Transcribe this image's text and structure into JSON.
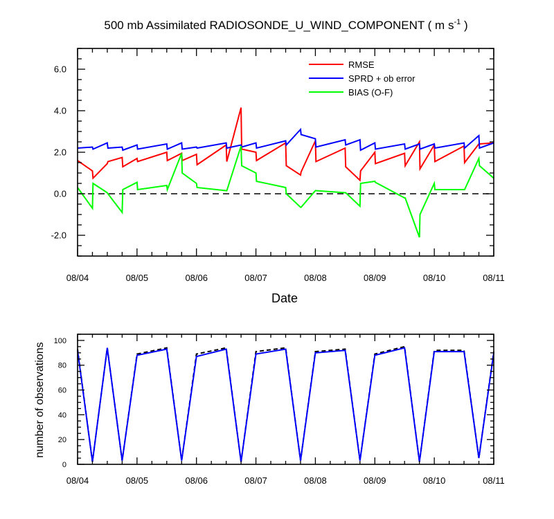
{
  "chart_data": [
    {
      "type": "line",
      "title": "500 mb Assimilated RADIOSONDE_U_WIND_COMPONENT ( m s",
      "title_superscript": "-1",
      "title_suffix": " )",
      "xlabel": "Date",
      "ylabel": "",
      "x_tick_labels": [
        "08/04",
        "08/05",
        "08/06",
        "08/07",
        "08/08",
        "08/09",
        "08/10",
        "08/11"
      ],
      "x_range": [
        0,
        7
      ],
      "ylim": [
        -3,
        7
      ],
      "y_ticks": [
        6.0,
        4.0,
        2.0,
        0.0,
        -2.0
      ],
      "y_tick_labels": [
        "6.0",
        "4.0",
        "2.0",
        "0.0",
        "-2.0"
      ],
      "zero_line": "dashed",
      "legend_position": "top-right",
      "series": [
        {
          "name": "RMSE",
          "color": "#ff0000",
          "points": [
            [
              0,
              1.6
            ],
            [
              0.25,
              1.1
            ],
            [
              0.26,
              0.75
            ],
            [
              0.5,
              1.45
            ],
            [
              0.51,
              1.55
            ],
            [
              0.75,
              1.75
            ],
            [
              0.76,
              1.3
            ],
            [
              1.0,
              1.7
            ],
            [
              1.01,
              1.55
            ],
            [
              1.5,
              2.0
            ],
            [
              1.51,
              1.6
            ],
            [
              1.75,
              1.95
            ],
            [
              1.76,
              1.6
            ],
            [
              2.0,
              1.9
            ],
            [
              2.01,
              1.4
            ],
            [
              2.5,
              2.35
            ],
            [
              2.51,
              1.55
            ],
            [
              2.75,
              4.15
            ],
            [
              2.76,
              2.15
            ],
            [
              3.0,
              2.0
            ],
            [
              3.01,
              1.6
            ],
            [
              3.5,
              2.45
            ],
            [
              3.51,
              1.35
            ],
            [
              3.75,
              0.9
            ],
            [
              3.76,
              1.05
            ],
            [
              4.0,
              2.55
            ],
            [
              4.01,
              1.55
            ],
            [
              4.5,
              2.2
            ],
            [
              4.51,
              1.3
            ],
            [
              4.75,
              0.65
            ],
            [
              4.76,
              1.1
            ],
            [
              5.0,
              2.0
            ],
            [
              5.01,
              1.45
            ],
            [
              5.5,
              1.95
            ],
            [
              5.51,
              1.35
            ],
            [
              5.75,
              2.5
            ],
            [
              5.76,
              1.2
            ],
            [
              6.0,
              2.35
            ],
            [
              6.01,
              1.55
            ],
            [
              6.5,
              2.3
            ],
            [
              6.51,
              1.5
            ],
            [
              6.75,
              2.4
            ],
            [
              6.76,
              2.4
            ],
            [
              7.0,
              2.45
            ]
          ]
        },
        {
          "name": "SPRD + ob error",
          "color": "#0000ff",
          "points": [
            [
              0,
              2.2
            ],
            [
              0.25,
              2.25
            ],
            [
              0.26,
              2.15
            ],
            [
              0.5,
              2.45
            ],
            [
              0.51,
              2.2
            ],
            [
              0.75,
              2.25
            ],
            [
              0.76,
              2.1
            ],
            [
              1.0,
              2.35
            ],
            [
              1.01,
              2.15
            ],
            [
              1.5,
              2.4
            ],
            [
              1.51,
              2.15
            ],
            [
              1.75,
              2.45
            ],
            [
              1.76,
              2.15
            ],
            [
              2.0,
              2.25
            ],
            [
              2.01,
              2.2
            ],
            [
              2.5,
              2.45
            ],
            [
              2.51,
              2.2
            ],
            [
              2.75,
              2.35
            ],
            [
              2.76,
              2.25
            ],
            [
              3.0,
              2.45
            ],
            [
              3.01,
              2.2
            ],
            [
              3.5,
              2.55
            ],
            [
              3.51,
              2.35
            ],
            [
              3.75,
              3.1
            ],
            [
              3.76,
              2.85
            ],
            [
              4.0,
              2.65
            ],
            [
              4.01,
              2.25
            ],
            [
              4.5,
              2.6
            ],
            [
              4.51,
              2.35
            ],
            [
              4.75,
              2.6
            ],
            [
              4.76,
              2.1
            ],
            [
              5.0,
              2.45
            ],
            [
              5.01,
              2.15
            ],
            [
              5.5,
              2.4
            ],
            [
              5.51,
              2.15
            ],
            [
              5.75,
              2.4
            ],
            [
              5.76,
              2.15
            ],
            [
              6.0,
              2.4
            ],
            [
              6.01,
              2.2
            ],
            [
              6.5,
              2.45
            ],
            [
              6.51,
              2.2
            ],
            [
              6.75,
              2.8
            ],
            [
              6.76,
              2.2
            ],
            [
              7.0,
              2.45
            ]
          ]
        },
        {
          "name": "BIAS (O-F)",
          "color": "#00ff00",
          "points": [
            [
              0,
              0.3
            ],
            [
              0.25,
              -0.7
            ],
            [
              0.26,
              0.5
            ],
            [
              0.5,
              0.05
            ],
            [
              0.51,
              0.0
            ],
            [
              0.75,
              -0.9
            ],
            [
              0.76,
              0.2
            ],
            [
              1.0,
              0.55
            ],
            [
              1.01,
              0.2
            ],
            [
              1.5,
              0.4
            ],
            [
              1.51,
              0.2
            ],
            [
              1.75,
              1.95
            ],
            [
              1.76,
              1.0
            ],
            [
              2.0,
              0.5
            ],
            [
              2.01,
              0.3
            ],
            [
              2.5,
              0.15
            ],
            [
              2.51,
              0.15
            ],
            [
              2.75,
              2.3
            ],
            [
              2.76,
              1.35
            ],
            [
              3.0,
              1.0
            ],
            [
              3.01,
              0.6
            ],
            [
              3.5,
              0.3
            ],
            [
              3.51,
              0.0
            ],
            [
              3.75,
              -0.65
            ],
            [
              3.76,
              -0.65
            ],
            [
              4.0,
              0.15
            ],
            [
              4.01,
              0.15
            ],
            [
              4.5,
              0.05
            ],
            [
              4.51,
              0.05
            ],
            [
              4.75,
              -0.6
            ],
            [
              4.76,
              0.5
            ],
            [
              5.0,
              0.6
            ],
            [
              5.01,
              0.55
            ],
            [
              5.5,
              -0.2
            ],
            [
              5.51,
              -0.2
            ],
            [
              5.75,
              -2.1
            ],
            [
              5.76,
              -1.0
            ],
            [
              6.0,
              0.5
            ],
            [
              6.01,
              0.2
            ],
            [
              6.5,
              0.2
            ],
            [
              6.51,
              0.2
            ],
            [
              6.75,
              1.7
            ],
            [
              6.76,
              1.35
            ],
            [
              7.0,
              0.75
            ]
          ]
        }
      ]
    },
    {
      "type": "line",
      "title": "",
      "xlabel": "",
      "ylabel": "number of observations",
      "x_tick_labels": [
        "08/04",
        "08/05",
        "08/06",
        "08/07",
        "08/08",
        "08/09",
        "08/10",
        "08/11"
      ],
      "x_range": [
        0,
        7
      ],
      "ylim": [
        0,
        105
      ],
      "y_ticks": [
        100,
        80,
        60,
        40,
        20,
        0
      ],
      "y_tick_labels": [
        "100",
        "80",
        "60",
        "40",
        "20",
        "0"
      ],
      "series": [
        {
          "color": "#000000",
          "style": "dashed",
          "points": [
            [
              0,
              93
            ],
            [
              0.25,
              2
            ],
            [
              0.5,
              94
            ],
            [
              0.75,
              3
            ],
            [
              1.0,
              89
            ],
            [
              1.5,
              94
            ],
            [
              1.75,
              3
            ],
            [
              2.0,
              89
            ],
            [
              2.5,
              94
            ],
            [
              2.75,
              2
            ],
            [
              3.0,
              91
            ],
            [
              3.5,
              94
            ],
            [
              3.75,
              3
            ],
            [
              4.0,
              91
            ],
            [
              4.5,
              93
            ],
            [
              4.75,
              3
            ],
            [
              5.0,
              89
            ],
            [
              5.5,
              95
            ],
            [
              5.75,
              2
            ],
            [
              6.0,
              92
            ],
            [
              6.5,
              92
            ],
            [
              6.75,
              5
            ],
            [
              7.0,
              91
            ]
          ]
        },
        {
          "color": "#0000ff",
          "style": "solid",
          "points": [
            [
              0,
              92
            ],
            [
              0.25,
              2
            ],
            [
              0.5,
              94
            ],
            [
              0.75,
              3
            ],
            [
              1.0,
              88
            ],
            [
              1.5,
              93
            ],
            [
              1.75,
              3
            ],
            [
              2.0,
              87
            ],
            [
              2.5,
              93
            ],
            [
              2.75,
              2
            ],
            [
              3.0,
              89
            ],
            [
              3.5,
              93
            ],
            [
              3.75,
              3
            ],
            [
              4.0,
              90
            ],
            [
              4.5,
              92
            ],
            [
              4.75,
              3
            ],
            [
              5.0,
              88
            ],
            [
              5.5,
              94
            ],
            [
              5.75,
              2
            ],
            [
              6.0,
              91
            ],
            [
              6.5,
              91
            ],
            [
              6.75,
              5
            ],
            [
              7.0,
              90
            ]
          ]
        }
      ]
    }
  ]
}
